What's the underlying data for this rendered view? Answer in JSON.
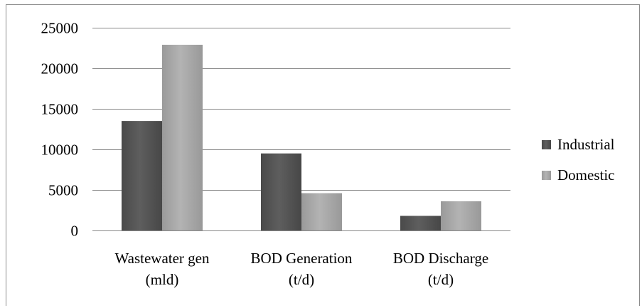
{
  "chart_data": {
    "type": "bar",
    "categories": [
      [
        "Wastewater gen",
        "(mld)"
      ],
      [
        "BOD Generation",
        "(t/d)"
      ],
      [
        "BOD Discharge",
        "(t/d)"
      ]
    ],
    "series": [
      {
        "name": "Industrial",
        "values": [
          13500,
          9500,
          1800
        ]
      },
      {
        "name": "Domestic",
        "values": [
          22900,
          4600,
          3600
        ]
      }
    ],
    "ylim": [
      0,
      25000
    ],
    "yticks": [
      0,
      5000,
      10000,
      15000,
      20000,
      25000
    ],
    "grid": true,
    "legend": "right",
    "colors": {
      "Industrial": "#555555",
      "Domestic": "#a6a6a6",
      "grid": "#878787",
      "frame": "#8c8c8c"
    }
  }
}
